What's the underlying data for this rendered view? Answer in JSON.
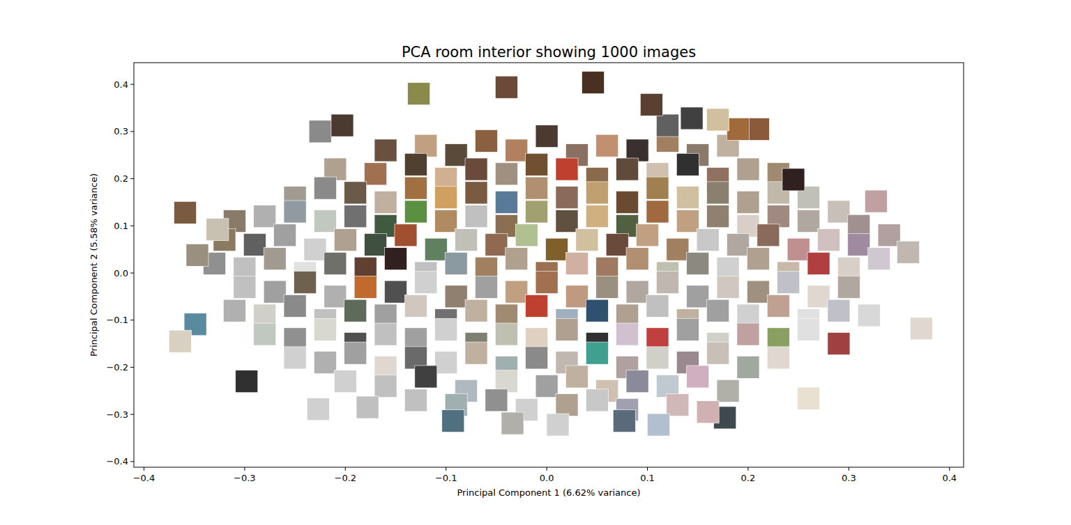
{
  "chart_data": {
    "type": "scatter",
    "title": "PCA room interior showing 1000 images",
    "x_label": "Principal Component 1 (6.62% variance)",
    "y_label": "Principal Component 2 (5.58% variance)",
    "marker": "square",
    "grid": false,
    "xlim": [
      -0.41,
      0.414
    ],
    "ylim": [
      -0.412,
      0.446
    ],
    "xticks": [
      {
        "value": -0.4,
        "label": "−0.4"
      },
      {
        "value": -0.3,
        "label": "−0.3"
      },
      {
        "value": -0.2,
        "label": "−0.2"
      },
      {
        "value": -0.1,
        "label": "−0.1"
      },
      {
        "value": 0,
        "label": "0.0"
      },
      0.1,
      0.2,
      0.3,
      0.4
    ],
    "yticks": [
      {
        "value": -0.4,
        "label": "−0.4"
      },
      {
        "value": -0.3,
        "label": "−0.3"
      },
      {
        "value": -0.2,
        "label": "−0.2"
      },
      {
        "value": -0.1,
        "label": "−0.1"
      },
      {
        "value": 0,
        "label": "0.0"
      },
      0.1,
      0.2,
      0.3,
      0.4
    ],
    "x": [
      -0.16,
      -0.12,
      -0.09,
      -0.06,
      -0.03,
      0.0,
      0.03,
      0.06,
      0.09,
      0.12,
      0.15,
      0.18,
      -0.21,
      -0.17,
      -0.13,
      -0.1,
      -0.07,
      -0.04,
      -0.01,
      0.02,
      0.05,
      0.08,
      0.11,
      0.14,
      0.17,
      0.2,
      0.23,
      -0.25,
      -0.22,
      -0.19,
      -0.16,
      -0.13,
      -0.1,
      -0.07,
      -0.04,
      -0.01,
      0.02,
      0.05,
      0.08,
      0.11,
      0.14,
      0.17,
      0.2,
      0.23,
      0.26,
      -0.31,
      -0.28,
      -0.25,
      -0.22,
      -0.19,
      -0.16,
      -0.13,
      -0.1,
      -0.07,
      -0.04,
      -0.01,
      0.02,
      0.05,
      0.08,
      0.11,
      0.14,
      0.17,
      0.2,
      0.23,
      0.26,
      0.29,
      0.31,
      -0.32,
      -0.29,
      -0.26,
      -0.23,
      -0.2,
      -0.17,
      -0.14,
      -0.11,
      -0.08,
      -0.05,
      -0.02,
      0.01,
      0.04,
      0.07,
      0.1,
      0.13,
      0.16,
      0.19,
      0.22,
      0.25,
      0.28,
      0.31,
      0.34,
      -0.33,
      -0.3,
      -0.27,
      -0.24,
      -0.21,
      -0.18,
      -0.15,
      -0.12,
      -0.09,
      -0.06,
      -0.03,
      0.0,
      0.03,
      0.06,
      0.09,
      0.12,
      0.15,
      0.18,
      0.21,
      0.24,
      0.27,
      0.3,
      0.33,
      -0.3,
      -0.27,
      -0.24,
      -0.21,
      -0.18,
      -0.15,
      -0.12,
      -0.09,
      -0.06,
      -0.03,
      0.0,
      0.03,
      0.06,
      0.09,
      0.12,
      0.15,
      0.18,
      0.21,
      0.24,
      0.27,
      0.3,
      -0.31,
      -0.28,
      -0.25,
      -0.22,
      -0.19,
      -0.16,
      -0.13,
      -0.1,
      -0.07,
      -0.04,
      -0.01,
      0.02,
      0.05,
      0.08,
      0.11,
      0.14,
      0.17,
      0.2,
      0.23,
      0.26,
      0.29,
      0.32,
      -0.28,
      -0.25,
      -0.22,
      -0.19,
      -0.16,
      -0.13,
      -0.1,
      -0.07,
      -0.04,
      -0.01,
      0.02,
      0.05,
      0.08,
      0.11,
      0.14,
      0.17,
      0.2,
      0.23,
      0.26,
      0.29,
      -0.25,
      -0.22,
      -0.19,
      -0.16,
      -0.13,
      -0.1,
      -0.07,
      -0.04,
      -0.01,
      0.02,
      0.05,
      0.08,
      0.11,
      0.14,
      0.17,
      0.2,
      0.23,
      -0.2,
      -0.16,
      -0.12,
      -0.08,
      -0.04,
      0.0,
      0.03,
      0.06,
      0.09,
      0.12,
      0.15,
      0.18,
      -0.13,
      -0.09,
      -0.05,
      -0.02,
      0.02,
      0.05,
      0.08,
      0.13,
      -0.127,
      -0.04,
      0.046,
      -0.225,
      -0.203,
      -0.359,
      -0.327,
      -0.347,
      -0.349,
      -0.364,
      -0.298,
      -0.227,
      -0.178,
      0.327,
      0.372,
      0.359,
      0.26,
      0.245,
      0.21,
      0.19,
      0.17,
      0.144,
      0.12,
      0.104,
      0.077,
      0.111,
      0.177,
      0.16,
      0.011,
      -0.034,
      -0.093
    ],
    "values": [
      0.26,
      0.27,
      0.25,
      0.28,
      0.26,
      0.29,
      0.25,
      0.27,
      0.26,
      0.28,
      0.25,
      0.27,
      0.22,
      0.21,
      0.23,
      0.2,
      0.22,
      0.21,
      0.23,
      0.22,
      0.2,
      0.22,
      0.21,
      0.23,
      0.2,
      0.22,
      0.21,
      0.16,
      0.18,
      0.17,
      0.15,
      0.18,
      0.16,
      0.17,
      0.15,
      0.18,
      0.16,
      0.17,
      0.15,
      0.18,
      0.16,
      0.17,
      0.15,
      0.17,
      0.16,
      0.11,
      0.12,
      0.13,
      0.11,
      0.12,
      0.1,
      0.13,
      0.11,
      0.12,
      0.1,
      0.13,
      0.11,
      0.12,
      0.1,
      0.13,
      0.11,
      0.12,
      0.1,
      0.12,
      0.11,
      0.13,
      0.1,
      0.07,
      0.06,
      0.08,
      0.05,
      0.07,
      0.06,
      0.08,
      0.05,
      0.07,
      0.06,
      0.08,
      0.05,
      0.07,
      0.06,
      0.08,
      0.05,
      0.07,
      0.06,
      0.08,
      0.05,
      0.07,
      0.06,
      0.08,
      0.02,
      0.01,
      0.03,
      0.0,
      0.02,
      0.01,
      0.03,
      0.0,
      0.02,
      0.01,
      0.03,
      0.0,
      0.02,
      0.01,
      0.03,
      0.0,
      0.02,
      0.01,
      0.03,
      0.0,
      0.02,
      0.01,
      0.03,
      -0.03,
      -0.04,
      -0.02,
      -0.05,
      -0.03,
      -0.04,
      -0.02,
      -0.05,
      -0.03,
      -0.04,
      -0.02,
      -0.05,
      -0.03,
      -0.04,
      -0.02,
      -0.05,
      -0.03,
      -0.04,
      -0.02,
      -0.05,
      -0.03,
      -0.08,
      -0.09,
      -0.07,
      -0.1,
      -0.08,
      -0.09,
      -0.07,
      -0.1,
      -0.08,
      -0.09,
      -0.07,
      -0.1,
      -0.08,
      -0.09,
      -0.07,
      -0.1,
      -0.08,
      -0.09,
      -0.07,
      -0.1,
      -0.08,
      -0.09,
      -0.13,
      -0.14,
      -0.12,
      -0.15,
      -0.13,
      -0.14,
      -0.12,
      -0.15,
      -0.13,
      -0.14,
      -0.12,
      -0.15,
      -0.13,
      -0.14,
      -0.12,
      -0.15,
      -0.13,
      -0.14,
      -0.12,
      -0.15,
      -0.18,
      -0.19,
      -0.17,
      -0.2,
      -0.18,
      -0.19,
      -0.17,
      -0.2,
      -0.18,
      -0.19,
      -0.17,
      -0.2,
      -0.18,
      -0.19,
      -0.17,
      -0.2,
      -0.18,
      -0.23,
      -0.24,
      -0.22,
      -0.25,
      -0.23,
      -0.24,
      -0.22,
      -0.25,
      -0.23,
      -0.24,
      -0.22,
      -0.25,
      -0.27,
      -0.28,
      -0.27,
      -0.29,
      -0.28,
      -0.27,
      -0.29,
      -0.28,
      0.38,
      0.394,
      0.404,
      0.3,
      0.313,
      0.128,
      0.092,
      0.038,
      -0.109,
      -0.145,
      -0.23,
      -0.289,
      -0.285,
      0.152,
      -0.118,
      0.044,
      -0.266,
      0.198,
      0.305,
      0.305,
      0.325,
      0.328,
      0.313,
      0.357,
      -0.314,
      -0.322,
      -0.307,
      -0.295,
      -0.322,
      -0.319,
      -0.314
    ],
    "colors": [
      "#6a5040",
      "#c0a080",
      "#5a4a3a",
      "#8a6040",
      "#b08060",
      "#4a3a30",
      "#8a7060",
      "#c09070",
      "#3a3030",
      "#a08060",
      "#8a7a6a",
      "#c0b0a0",
      "#b0a090",
      "#a07050",
      "#504030",
      "#d0b090",
      "#6a4a3a",
      "#a09080",
      "#705030",
      "#c04030",
      "#8a6a4a",
      "#604a3a",
      "#d0c0b0",
      "#303030",
      "#907060",
      "#b0a090",
      "#a08a70",
      "#a09a90",
      "#8a8a8a",
      "#6a5a4a",
      "#c0b0a0",
      "#a07040",
      "#d0a060",
      "#7a5a40",
      "#5a7a9a",
      "#b09070",
      "#8a6a5a",
      "#c0a070",
      "#6a4a30",
      "#a08050",
      "#d0c0a0",
      "#8a8070",
      "#b0a090",
      "#c0b8a8",
      "#c0c0b8",
      "#8a7a6a",
      "#b0b0b0",
      "#909aa0",
      "#c0c8c0",
      "#707070",
      "#405a40",
      "#5a9040",
      "#b08a60",
      "#c0c0c0",
      "#8a7050",
      "#a0a070",
      "#605040",
      "#d0b080",
      "#506040",
      "#a06a40",
      "#c0a080",
      "#908070",
      "#d8d0c8",
      "#a08a80",
      "#b0a8a0",
      "#c8c0b8",
      "#a09090",
      "#8a7a60",
      "#606060",
      "#a0a0a0",
      "#d0d0d0",
      "#b0a090",
      "#405040",
      "#a05030",
      "#608060",
      "#c0c0b8",
      "#906a50",
      "#b0c090",
      "#80602a",
      "#d0c0a0",
      "#6a4a3a",
      "#c0a080",
      "#a08060",
      "#c8c8c8",
      "#b0a8a0",
      "#8a6a5a",
      "#c09090",
      "#d0c0c0",
      "#a08aa0",
      "#b0a0a0",
      "#909090",
      "#c0c0c0",
      "#a09a90",
      "#e0e0e0",
      "#70706a",
      "#604030",
      "#302020",
      "#c0c0c0",
      "#8a9aa0",
      "#a08060",
      "#b0a090",
      "#9a7050",
      "#d0b0a0",
      "#a07a60",
      "#b09070",
      "#c0c0b0",
      "#8a8a80",
      "#d0d0d0",
      "#b0a090",
      "#c8b8a8",
      "#b04040",
      "#d8d0c8",
      "#d0c8d0",
      "#c0c0c0",
      "#a0a0a0",
      "#706050",
      "#b0b0b0",
      "#c06a30",
      "#505050",
      "#d0d0d0",
      "#908070",
      "#a0a0a0",
      "#c0a080",
      "#a07050",
      "#c09a80",
      "#9a9080",
      "#b0a8a0",
      "#c0b8b0",
      "#a0a0a0",
      "#d0c8c0",
      "#a09080",
      "#c0c0c8",
      "#e0d8d0",
      "#b0a8a0",
      "#b0b0b0",
      "#d0d0c8",
      "#8a8a8a",
      "#c0c0c0",
      "#606a5a",
      "#a0a0a0",
      "#d0c8c0",
      "#707070",
      "#c0b0a0",
      "#a08a70",
      "#c04030",
      "#a0b0c0",
      "#305070",
      "#b0a090",
      "#c0c0c0",
      "#c0b0a0",
      "#a0a0a0",
      "#d0d0d0",
      "#c0a090",
      "#e0e0e0",
      "#c0c0c8",
      "#d8d8d8",
      "#c0c8c0",
      "#909090",
      "#d8d8d0",
      "#505050",
      "#c0c0c0",
      "#a0a0a0",
      "#d0d0d0",
      "#808070",
      "#c0c0b0",
      "#e0d0c0",
      "#b0a090",
      "#303030",
      "#d0c0d0",
      "#c04040",
      "#a0a0a0",
      "#d0d0c8",
      "#c0a0a0",
      "#8aa060",
      "#e0e0e0",
      "#a04040",
      "#d0d0d0",
      "#b0b0b0",
      "#a0a0a0",
      "#e0d8d0",
      "#6a6a6a",
      "#d0d0d0",
      "#c0b0a0",
      "#a0b0b0",
      "#8a8a8a",
      "#c0b8b0",
      "#40a090",
      "#b0a0a0",
      "#d0d0c8",
      "#9a8a90",
      "#c8c0b8",
      "#a0a8a0",
      "#e0d8d0",
      "#d0d0d0",
      "#c0c0c0",
      "#404040",
      "#b0b8c0",
      "#d8d8d0",
      "#a0a0a0",
      "#c0b0a0",
      "#d0c0b0",
      "#8a8a9a",
      "#c0c8d0",
      "#d0b0c0",
      "#b0b0a8",
      "#c0c0c0",
      "#a0b0b0",
      "#909090",
      "#d0d0d0",
      "#b0a090",
      "#c8c8c8",
      "#a0a0b0",
      "#d0b8b8",
      "#8a8a4a",
      "#6b4a3a",
      "#4a3020",
      "#8a8a8a",
      "#4a3a30",
      "#7a5a40",
      "#c8c0b0",
      "#9a9080",
      "#5a8aa0",
      "#d8d0c0",
      "#303030",
      "#d0d0d0",
      "#c0c0c0",
      "#c0a0a0",
      "#e0d8d0",
      "#c0b8b0",
      "#e8e0d0",
      "#302020",
      "#8a5a3a",
      "#a06a3a",
      "#d0c0a0",
      "#404040",
      "#606060",
      "#5a4030",
      "#5a6a7a",
      "#b0c0d0",
      "#404850",
      "#d0b0b0",
      "#d0d0d0",
      "#b0b0a8",
      "#507080"
    ]
  }
}
